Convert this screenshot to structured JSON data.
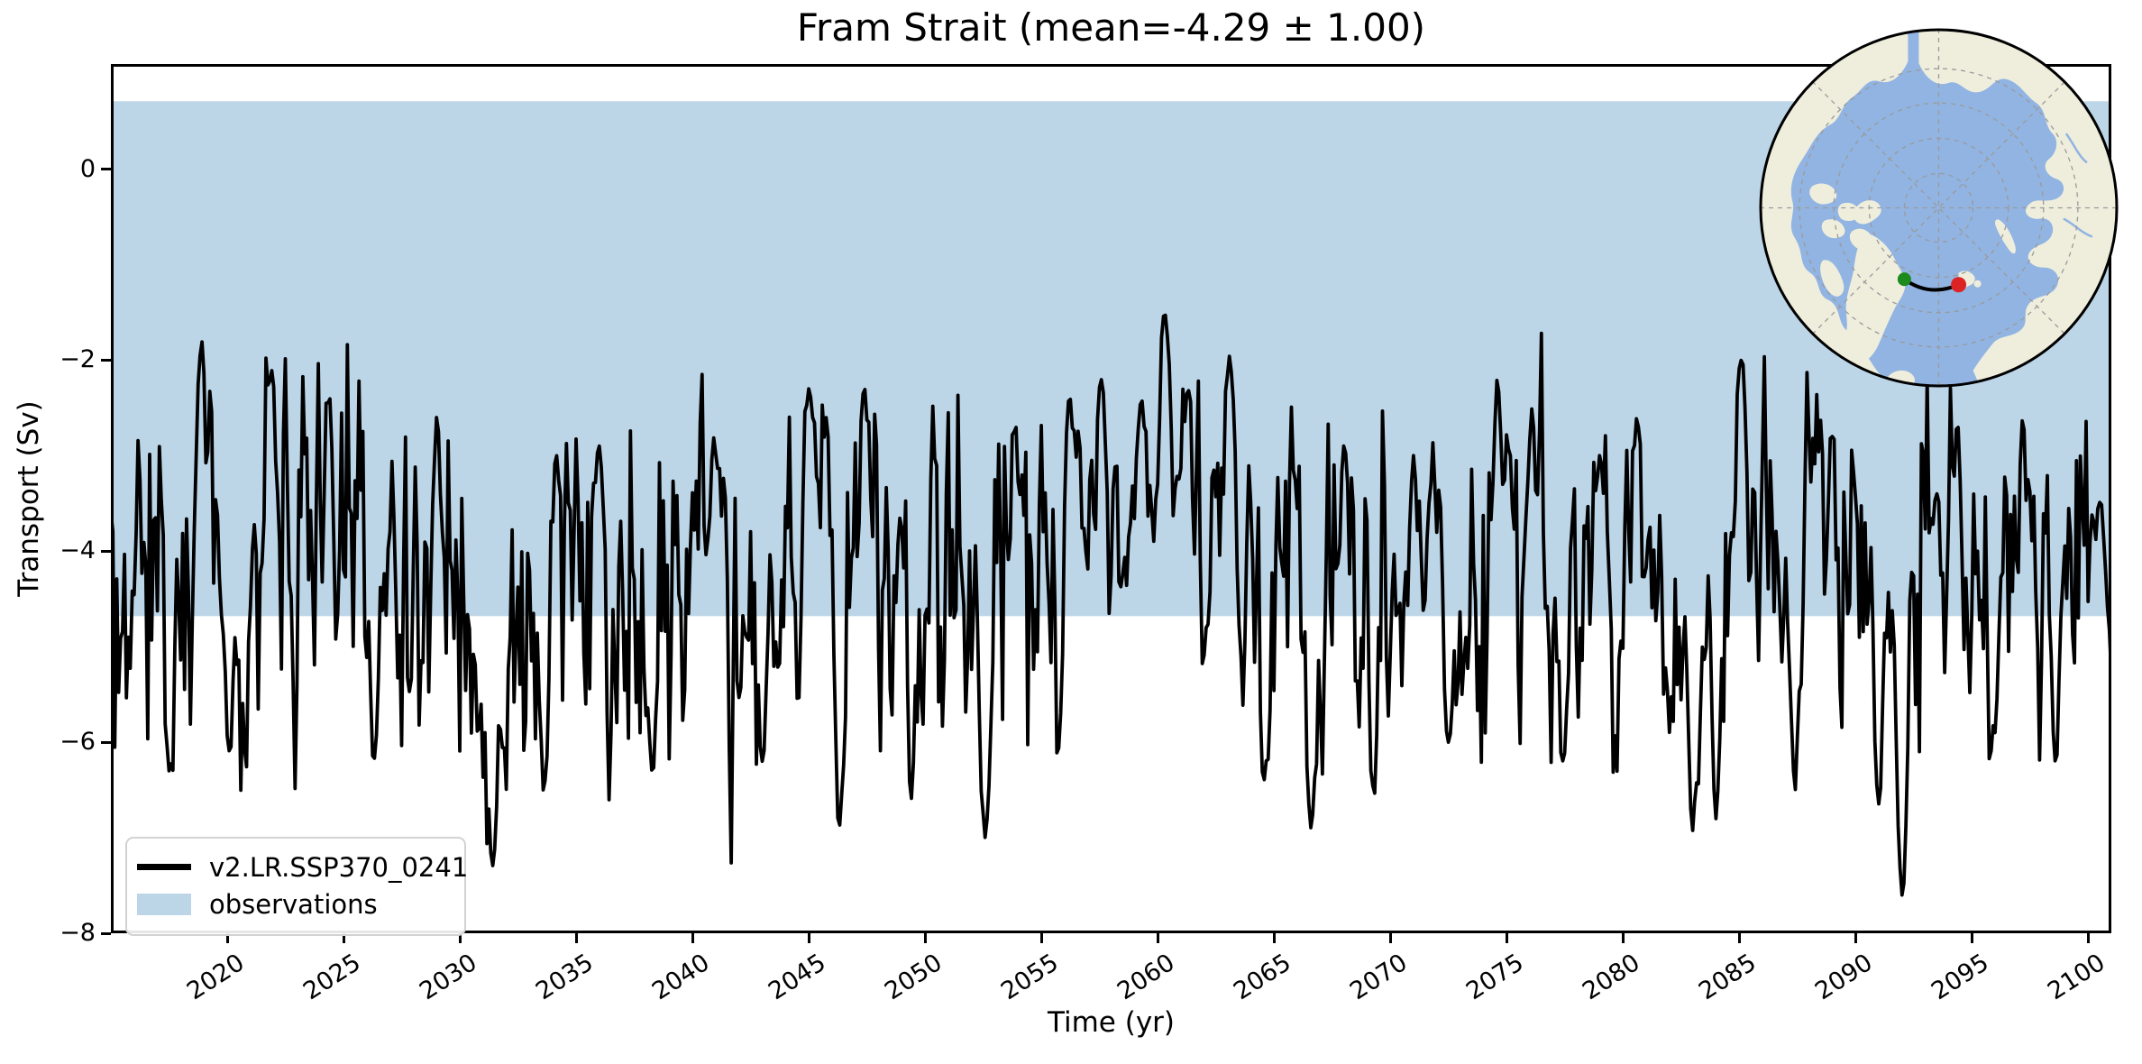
{
  "title": "Fram Strait (mean=-4.29 ± 1.00)",
  "axes": {
    "xlabel": "Time (yr)",
    "ylabel": "Transport (Sv)",
    "ytick_labels": [
      "0",
      "−2",
      "−4",
      "−6",
      "−8"
    ]
  },
  "legend": {
    "position": "lower left",
    "items": [
      {
        "label": "v2.LR.SSP370_0241",
        "type": "line",
        "color": "#000000"
      },
      {
        "label": "observations",
        "type": "patch",
        "color": "#bcd6e8"
      }
    ]
  },
  "chart_data": {
    "type": "line",
    "title": "Fram Strait (mean=-4.29 ± 1.00)",
    "xlabel": "Time (yr)",
    "ylabel": "Transport (Sv)",
    "xlim": [
      2015,
      2101
    ],
    "ylim": [
      -8,
      1.1
    ],
    "xticks": [
      2020,
      2025,
      2030,
      2035,
      2040,
      2045,
      2050,
      2055,
      2060,
      2065,
      2070,
      2075,
      2080,
      2085,
      2090,
      2095,
      2100
    ],
    "yticks": [
      0,
      -2,
      -4,
      -6,
      -8
    ],
    "grid": false,
    "legend_position": "lower left",
    "band": {
      "label": "observations",
      "y_top": 0.71,
      "y_bottom": -4.68,
      "color": "#bcd6e8"
    },
    "series": [
      {
        "name": "v2.LR.SSP370_0241",
        "color": "#000000",
        "line_width": 3.8,
        "sampling": "monthly",
        "x_start": 2015,
        "x_end": 2101,
        "stats": {
          "mean": -4.29,
          "std": 1.0
        },
        "observed_range": [
          -7.6,
          -1.5
        ],
        "generator": {
          "seed": 20241,
          "ar": 0.42,
          "clamp": [
            -7.66,
            -1.46
          ],
          "modulation": [
            {
              "period_yr": 37.0,
              "amp": 0.16,
              "phase": 0.8
            },
            {
              "period_yr": 11.2,
              "amp": 0.2,
              "phase": 2.4
            },
            {
              "period_yr": 5.3,
              "amp": 0.16,
              "phase": 4.1
            },
            {
              "period_yr": 1.0,
              "amp": 0.18,
              "phase": 0.3
            }
          ],
          "anchors": [
            {
              "x": 2017.5,
              "y": -6.3,
              "w": 2,
              "s": 1
            },
            {
              "x": 2018.9,
              "y": -1.8,
              "w": 2.5,
              "s": 1
            },
            {
              "x": 2020.1,
              "y": -6.1,
              "w": 2,
              "s": 1
            },
            {
              "x": 2021.9,
              "y": -2.1,
              "w": 2.5,
              "s": 1
            },
            {
              "x": 2024.4,
              "y": -2.4,
              "w": 2,
              "s": 1
            },
            {
              "x": 2026.3,
              "y": -6.2,
              "w": 2,
              "s": 1
            },
            {
              "x": 2029.0,
              "y": -2.6,
              "w": 2,
              "s": 1
            },
            {
              "x": 2031.2,
              "y": -5.6,
              "w": 8,
              "s": 0.3
            },
            {
              "x": 2031.4,
              "y": -7.3,
              "w": 2.5,
              "s": 1
            },
            {
              "x": 2033.6,
              "y": -6.5,
              "w": 2,
              "s": 1
            },
            {
              "x": 2036.0,
              "y": -2.9,
              "w": 2,
              "s": 1
            },
            {
              "x": 2038.3,
              "y": -6.3,
              "w": 2,
              "s": 1
            },
            {
              "x": 2040.9,
              "y": -2.8,
              "w": 2,
              "s": 1
            },
            {
              "x": 2043.0,
              "y": -6.2,
              "w": 2,
              "s": 1
            },
            {
              "x": 2045.0,
              "y": -2.3,
              "w": 2.5,
              "s": 1
            },
            {
              "x": 2046.3,
              "y": -6.9,
              "w": 2,
              "s": 1
            },
            {
              "x": 2047.4,
              "y": -2.3,
              "w": 2.5,
              "s": 1
            },
            {
              "x": 2049.4,
              "y": -6.6,
              "w": 2,
              "s": 1
            },
            {
              "x": 2052.6,
              "y": -7.0,
              "w": 2.5,
              "s": 1
            },
            {
              "x": 2053.9,
              "y": -2.7,
              "w": 2,
              "s": 1
            },
            {
              "x": 2056.2,
              "y": -2.4,
              "w": 2,
              "s": 1
            },
            {
              "x": 2057.6,
              "y": -2.0,
              "w": 2.5,
              "s": 1
            },
            {
              "x": 2058.5,
              "y": -4.9,
              "w": 1.5,
              "s": 1
            },
            {
              "x": 2059.3,
              "y": -1.9,
              "w": 2,
              "s": 1
            },
            {
              "x": 2059.7,
              "y": -3.0,
              "w": 20,
              "s": 0.45
            },
            {
              "x": 2060.3,
              "y": -1.5,
              "w": 2.5,
              "s": 1
            },
            {
              "x": 2061.3,
              "y": -2.3,
              "w": 2,
              "s": 1
            },
            {
              "x": 2062.1,
              "y": -4.8,
              "w": 1.5,
              "s": 1
            },
            {
              "x": 2063.1,
              "y": -1.95,
              "w": 2,
              "s": 1
            },
            {
              "x": 2064.6,
              "y": -6.4,
              "w": 2,
              "s": 1
            },
            {
              "x": 2066.6,
              "y": -6.9,
              "w": 2.5,
              "s": 1
            },
            {
              "x": 2068.0,
              "y": -2.9,
              "w": 2,
              "s": 1
            },
            {
              "x": 2069.3,
              "y": -6.6,
              "w": 2,
              "s": 1
            },
            {
              "x": 2071.0,
              "y": -3.0,
              "w": 2,
              "s": 1
            },
            {
              "x": 2072.5,
              "y": -6.0,
              "w": 2,
              "s": 1
            },
            {
              "x": 2074.6,
              "y": -2.2,
              "w": 2.5,
              "s": 1
            },
            {
              "x": 2076.1,
              "y": -2.5,
              "w": 2,
              "s": 1
            },
            {
              "x": 2077.4,
              "y": -6.2,
              "w": 2,
              "s": 1
            },
            {
              "x": 2079.0,
              "y": -3.0,
              "w": 2,
              "s": 1
            },
            {
              "x": 2080.6,
              "y": -2.6,
              "w": 2,
              "s": 1
            },
            {
              "x": 2082.0,
              "y": -5.9,
              "w": 1.5,
              "s": 1
            },
            {
              "x": 2083.0,
              "y": -7.3,
              "w": 2.5,
              "s": 1
            },
            {
              "x": 2083.4,
              "y": -5.8,
              "w": 8,
              "s": 0.3
            },
            {
              "x": 2084.0,
              "y": -6.8,
              "w": 2,
              "s": 1
            },
            {
              "x": 2085.1,
              "y": -2.0,
              "w": 2.5,
              "s": 1
            },
            {
              "x": 2087.4,
              "y": -6.5,
              "w": 2,
              "s": 1
            },
            {
              "x": 2089.0,
              "y": -2.8,
              "w": 2,
              "s": 1
            },
            {
              "x": 2091.0,
              "y": -6.9,
              "w": 2,
              "s": 1
            },
            {
              "x": 2091.6,
              "y": -5.9,
              "w": 9,
              "s": 0.35
            },
            {
              "x": 2092.0,
              "y": -7.6,
              "w": 2.5,
              "s": 1
            },
            {
              "x": 2093.5,
              "y": -3.4,
              "w": 2,
              "s": 1
            },
            {
              "x": 2094.4,
              "y": -2.7,
              "w": 2,
              "s": 1
            },
            {
              "x": 2096.0,
              "y": -5.9,
              "w": 2,
              "s": 1
            },
            {
              "x": 2097.2,
              "y": -2.6,
              "w": 2,
              "s": 1
            },
            {
              "x": 2098.6,
              "y": -6.2,
              "w": 2,
              "s": 1
            },
            {
              "x": 2100.2,
              "y": -3.6,
              "w": 2,
              "s": 1
            },
            {
              "x": 2100.6,
              "y": -3.5,
              "w": 1.5,
              "s": 1
            },
            {
              "x": 2101.0,
              "y": -5.3,
              "w": 1.5,
              "s": 1
            }
          ]
        }
      }
    ]
  },
  "inset_map": {
    "projection": "north-polar-stereographic",
    "ocean_color": "#92b4e2",
    "land_color": "#efeedd",
    "graticule_color": "#9a9a9a",
    "section": {
      "line_color": "#000000",
      "start_color": "#1d8a1d",
      "end_color": "#dc2424"
    }
  }
}
